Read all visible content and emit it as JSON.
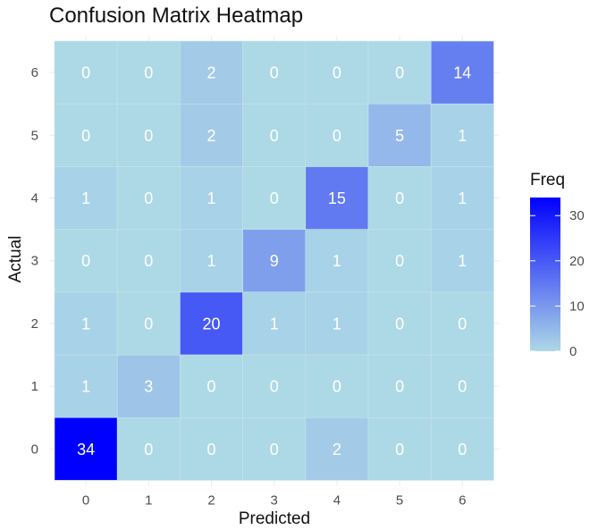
{
  "chart_data": {
    "type": "heatmap",
    "title": "Confusion Matrix Heatmap",
    "xlabel": "Predicted",
    "ylabel": "Actual",
    "x_categories": [
      "0",
      "1",
      "2",
      "3",
      "4",
      "5",
      "6"
    ],
    "y_categories": [
      "0",
      "1",
      "2",
      "3",
      "4",
      "5",
      "6"
    ],
    "matrix": [
      [
        34,
        0,
        0,
        0,
        2,
        0,
        0
      ],
      [
        1,
        3,
        0,
        0,
        0,
        0,
        0
      ],
      [
        1,
        0,
        20,
        1,
        1,
        0,
        0
      ],
      [
        0,
        0,
        1,
        9,
        1,
        0,
        1
      ],
      [
        1,
        0,
        1,
        0,
        15,
        0,
        1
      ],
      [
        0,
        0,
        2,
        0,
        0,
        5,
        1
      ],
      [
        0,
        0,
        2,
        0,
        0,
        0,
        14
      ]
    ],
    "legend": {
      "title": "Freq",
      "ticks": [
        0,
        10,
        20,
        30
      ],
      "range": [
        0,
        34
      ],
      "placement": "right"
    },
    "colors": {
      "low": "#add8e6",
      "high": "#0000ff"
    },
    "grid": true
  }
}
